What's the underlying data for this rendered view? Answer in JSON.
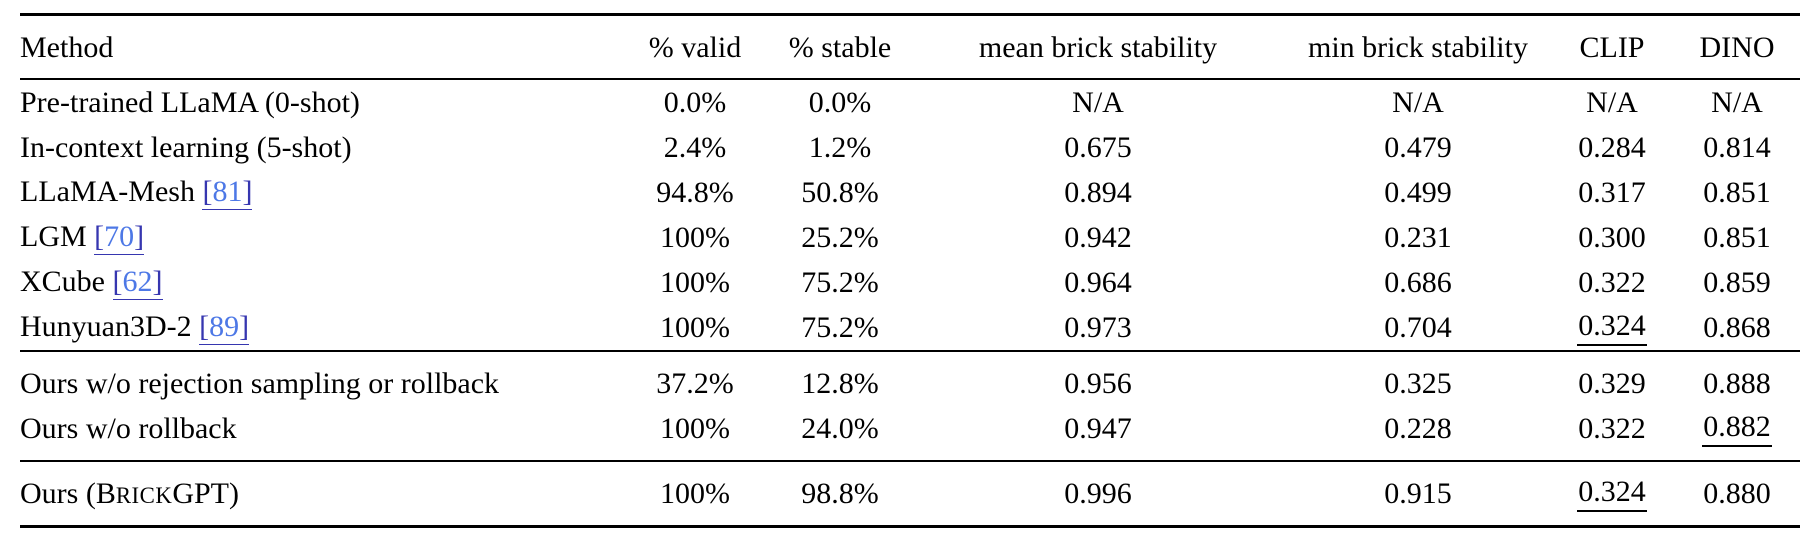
{
  "page": {
    "background": "#ffffff",
    "text_color": "#000000",
    "rule_color": "#000000"
  },
  "colors": {
    "cite_bracket": "#3636b0",
    "cite_number": "#4d78e6",
    "cite_underline": "#3636b0"
  },
  "table": {
    "columns": [
      {
        "id": "method",
        "label": "Method",
        "align": "left"
      },
      {
        "id": "valid",
        "label": "% valid",
        "align": "center"
      },
      {
        "id": "stable",
        "label": "% stable",
        "align": "center"
      },
      {
        "id": "mean_stability",
        "label": "mean brick stability",
        "align": "center"
      },
      {
        "id": "min_stability",
        "label": "min brick stability",
        "align": "center"
      },
      {
        "id": "clip",
        "label": "CLIP",
        "align": "center"
      },
      {
        "id": "dino",
        "label": "DINO",
        "align": "center"
      }
    ],
    "groups": [
      {
        "name": "baselines",
        "rows": [
          {
            "method": {
              "segments": [
                {
                  "t": "Pre-trained LLaMA (0-shot)"
                }
              ]
            },
            "values": [
              {
                "t": "0.0%"
              },
              {
                "t": "0.0%"
              },
              {
                "t": "N/A"
              },
              {
                "t": "N/A"
              },
              {
                "t": "N/A"
              },
              {
                "t": "N/A"
              }
            ]
          },
          {
            "method": {
              "segments": [
                {
                  "t": "In-context learning (5-shot)"
                }
              ]
            },
            "values": [
              {
                "t": "2.4%"
              },
              {
                "t": "1.2%"
              },
              {
                "t": "0.675"
              },
              {
                "t": "0.479"
              },
              {
                "t": "0.284"
              },
              {
                "t": "0.814"
              }
            ]
          },
          {
            "method": {
              "segments": [
                {
                  "t": "LLaMA-Mesh"
                }
              ],
              "cite": "[81]"
            },
            "values": [
              {
                "t": "94.8%"
              },
              {
                "t": "50.8%"
              },
              {
                "t": "0.894"
              },
              {
                "t": "0.499"
              },
              {
                "t": "0.317"
              },
              {
                "t": "0.851"
              }
            ]
          },
          {
            "method": {
              "segments": [
                {
                  "t": "LGM"
                }
              ],
              "cite": "[70]"
            },
            "values": [
              {
                "t": "100%",
                "bold": true
              },
              {
                "t": "25.2%"
              },
              {
                "t": "0.942"
              },
              {
                "t": "0.231"
              },
              {
                "t": "0.300"
              },
              {
                "t": "0.851"
              }
            ]
          },
          {
            "method": {
              "segments": [
                {
                  "t": "XCube"
                }
              ],
              "cite": "[62]"
            },
            "values": [
              {
                "t": "100%",
                "bold": true
              },
              {
                "t": "75.2%"
              },
              {
                "t": "0.964"
              },
              {
                "t": "0.686"
              },
              {
                "t": "0.322"
              },
              {
                "t": "0.859"
              }
            ]
          },
          {
            "method": {
              "segments": [
                {
                  "t": "Hunyuan3D-2"
                }
              ],
              "cite": "[89]"
            },
            "values": [
              {
                "t": "100%",
                "bold": true
              },
              {
                "t": "75.2%"
              },
              {
                "t": "0.973"
              },
              {
                "t": "0.704"
              },
              {
                "t": "0.324",
                "underline": true
              },
              {
                "t": "0.868"
              }
            ]
          }
        ]
      },
      {
        "name": "ablations",
        "rows": [
          {
            "method": {
              "segments": [
                {
                  "t": "Ours w/o rejection sampling or rollback"
                }
              ]
            },
            "values": [
              {
                "t": "37.2%"
              },
              {
                "t": "12.8%"
              },
              {
                "t": "0.956"
              },
              {
                "t": "0.325"
              },
              {
                "t": "0.329",
                "bold": true
              },
              {
                "t": "0.888",
                "bold": true
              }
            ]
          },
          {
            "method": {
              "segments": [
                {
                  "t": "Ours w/o rollback"
                }
              ]
            },
            "values": [
              {
                "t": "100%",
                "bold": true
              },
              {
                "t": "24.0%"
              },
              {
                "t": "0.947"
              },
              {
                "t": "0.228"
              },
              {
                "t": "0.322"
              },
              {
                "t": "0.882",
                "underline": true
              }
            ]
          }
        ]
      },
      {
        "name": "ours",
        "rows": [
          {
            "method": {
              "segments": [
                {
                  "t": "Ours (B"
                },
                {
                  "t": "RICK",
                  "smallcaps": true
                },
                {
                  "t": "GPT)"
                }
              ],
              "bold": true
            },
            "values": [
              {
                "t": "100%",
                "bold": true
              },
              {
                "t": "98.8%",
                "bold": true
              },
              {
                "t": "0.996",
                "bold": true
              },
              {
                "t": "0.915",
                "bold": true
              },
              {
                "t": "0.324",
                "underline": true
              },
              {
                "t": "0.880"
              }
            ]
          }
        ]
      }
    ]
  }
}
